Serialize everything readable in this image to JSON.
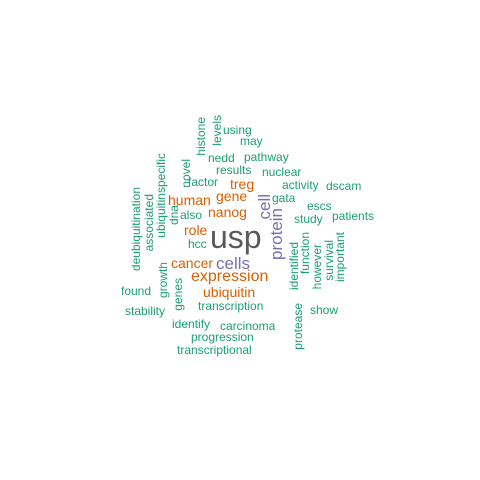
{
  "colors": {
    "tier1": "#1b9e77",
    "tier2": "#d95f02",
    "tier3": "#7570b3",
    "tier4": "#595959"
  },
  "words": {
    "usp": "usp",
    "expression": "expression",
    "cells": "cells",
    "protein": "protein",
    "cell": "cell",
    "nanog": "nanog",
    "gene": "gene",
    "human": "human",
    "treg": "treg",
    "role": "role",
    "cancer": "cancer",
    "ubiquitin": "ubiquitin",
    "transcription": "transcription",
    "identify": "identify",
    "carcinoma": "carcinoma",
    "progression": "progression",
    "transcriptional": "transcriptional",
    "stability": "stability",
    "found": "found",
    "growth": "growth",
    "genes": "genes",
    "deubiquitination": "deubiquitination",
    "associated": "associated",
    "ubiquitinspecific": "ubiquitinspecific",
    "dna": "dna",
    "novel": "novel",
    "histone": "histone",
    "levels": "levels",
    "using": "using",
    "may": "may",
    "nedd": "nedd",
    "pathway": "pathway",
    "results": "results",
    "nuclear": "nuclear",
    "factor": "factor",
    "activity": "activity",
    "dscam": "dscam",
    "gata": "gata",
    "escs": "escs",
    "study": "study",
    "patients": "patients",
    "also": "also",
    "hcc": "hcc",
    "identified": "identified",
    "function": "function",
    "however": "however",
    "survival": "survival",
    "important": "important",
    "protease": "protease",
    "show": "show"
  }
}
